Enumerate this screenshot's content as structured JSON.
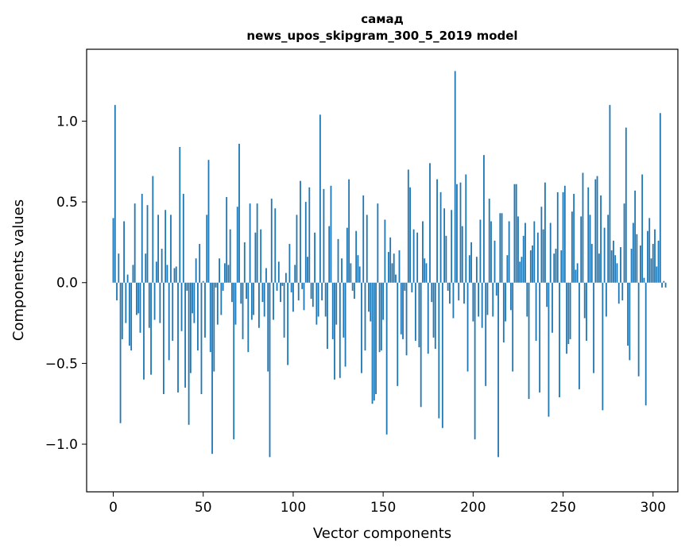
{
  "chart_data": {
    "type": "bar",
    "title": "самад",
    "subtitle": "news_upos_skipgram_300_5_2019 model",
    "xlabel": "Vector components",
    "ylabel": "Components values",
    "xlim": [
      -14.8,
      313.8
    ],
    "ylim": [
      -1.295,
      1.445
    ],
    "x_ticks": [
      0,
      50,
      100,
      150,
      200,
      250,
      300
    ],
    "y_ticks": [
      -1.0,
      -0.5,
      0.0,
      0.5,
      1.0
    ],
    "x_tick_labels": [
      "0",
      "50",
      "100",
      "150",
      "200",
      "250",
      "300"
    ],
    "y_tick_labels": [
      "−1.0",
      "−0.5",
      "0.0",
      "0.5",
      "1.0"
    ],
    "grid": false,
    "bar_color": "#1f77b4",
    "values": [
      0.4,
      1.1,
      -0.11,
      0.18,
      -0.87,
      -0.35,
      0.38,
      -0.25,
      0.05,
      -0.39,
      -0.42,
      0.11,
      0.49,
      -0.2,
      -0.19,
      -0.31,
      0.55,
      -0.6,
      0.18,
      0.48,
      -0.28,
      -0.57,
      0.66,
      -0.23,
      0.13,
      0.42,
      -0.25,
      0.21,
      -0.69,
      0.45,
      0.11,
      -0.48,
      0.42,
      -0.36,
      0.09,
      0.1,
      -0.68,
      0.84,
      -0.3,
      0.55,
      -0.65,
      -0.05,
      -0.88,
      -0.56,
      -0.19,
      -0.25,
      0.15,
      -0.42,
      0.24,
      -0.69,
      0.01,
      -0.34,
      0.42,
      0.76,
      -0.43,
      -1.06,
      -0.55,
      -0.03,
      -0.26,
      0.15,
      -0.2,
      -0.05,
      0.12,
      0.53,
      0.11,
      0.33,
      -0.12,
      -0.97,
      -0.26,
      0.47,
      0.86,
      -0.13,
      -0.35,
      0.25,
      -0.1,
      -0.43,
      0.49,
      -0.23,
      -0.2,
      0.31,
      0.49,
      -0.28,
      0.33,
      -0.12,
      -0.21,
      0.09,
      -0.55,
      -1.08,
      0.52,
      -0.23,
      0.46,
      -0.05,
      0.13,
      -0.12,
      -0.02,
      -0.34,
      0.06,
      -0.51,
      0.24,
      -0.06,
      -0.18,
      0.11,
      0.42,
      -0.11,
      0.63,
      -0.04,
      -0.17,
      0.5,
      0.16,
      0.59,
      -0.1,
      -0.15,
      0.31,
      -0.26,
      -0.21,
      1.04,
      -0.11,
      0.58,
      -0.21,
      -0.41,
      0.35,
      0.6,
      -0.35,
      -0.6,
      -0.26,
      0.27,
      -0.59,
      0.15,
      -0.34,
      -0.52,
      0.34,
      0.64,
      0.12,
      -0.05,
      -0.1,
      0.32,
      0.17,
      0.1,
      -0.56,
      0.54,
      -0.42,
      0.42,
      -0.18,
      -0.24,
      -0.75,
      -0.73,
      -0.69,
      0.49,
      -0.43,
      -0.42,
      -0.23,
      0.39,
      -0.94,
      0.19,
      0.28,
      0.12,
      0.18,
      0.05,
      -0.64,
      0.2,
      -0.32,
      -0.35,
      -0.05,
      -0.45,
      0.7,
      0.59,
      -0.06,
      0.33,
      -0.36,
      0.31,
      -0.4,
      -0.77,
      0.38,
      0.15,
      0.12,
      -0.44,
      0.74,
      -0.12,
      -0.34,
      -0.41,
      0.64,
      -0.84,
      0.56,
      -0.9,
      0.46,
      0.29,
      -0.05,
      -0.13,
      0.45,
      -0.22,
      1.31,
      0.61,
      -0.11,
      0.62,
      0.35,
      -0.13,
      0.67,
      -0.55,
      0.17,
      0.25,
      -0.24,
      -0.97,
      0.16,
      -0.21,
      0.39,
      -0.28,
      0.79,
      -0.64,
      -0.2,
      0.52,
      0.38,
      -0.21,
      0.26,
      -0.08,
      -1.08,
      0.43,
      0.43,
      -0.37,
      -0.24,
      0.17,
      0.38,
      -0.17,
      -0.55,
      0.61,
      0.61,
      0.41,
      0.13,
      0.16,
      0.29,
      0.37,
      -0.21,
      -0.72,
      0.2,
      0.23,
      0.38,
      -0.36,
      0.31,
      -0.68,
      0.47,
      0.33,
      0.62,
      -0.15,
      -0.83,
      0.37,
      -0.31,
      0.18,
      0.21,
      0.56,
      -0.71,
      0.2,
      0.56,
      0.6,
      -0.44,
      -0.38,
      -0.35,
      0.44,
      0.55,
      0.08,
      0.12,
      -0.66,
      0.41,
      0.68,
      -0.22,
      -0.36,
      0.59,
      0.42,
      0.24,
      -0.56,
      0.64,
      0.66,
      0.18,
      0.54,
      -0.79,
      0.34,
      -0.21,
      0.42,
      1.1,
      0.2,
      0.26,
      0.17,
      0.12,
      -0.13,
      0.22,
      -0.11,
      0.49,
      0.96,
      -0.39,
      -0.48,
      0.21,
      0.37,
      0.57,
      0.3,
      -0.58,
      0.23,
      0.67,
      0.03,
      -0.76,
      0.32,
      0.4,
      0.15,
      0.24,
      0.33,
      0.1,
      0.26,
      1.05,
      -0.03,
      0.01,
      -0.03
    ]
  }
}
